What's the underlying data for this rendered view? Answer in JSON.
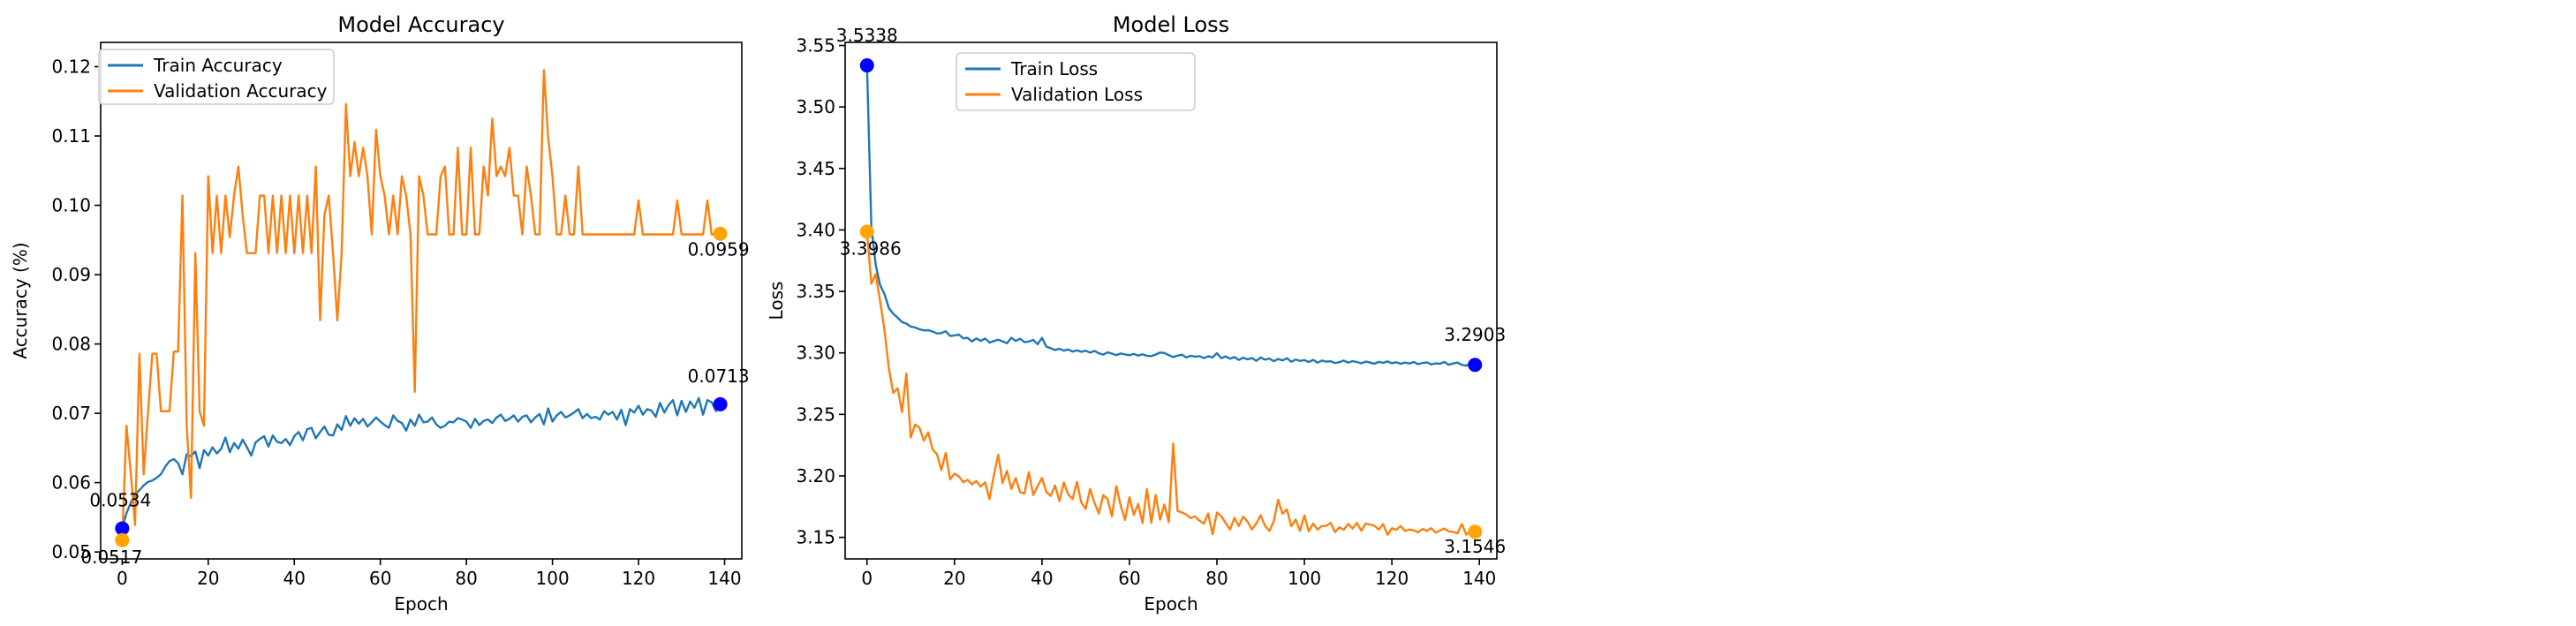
{
  "chart_data": [
    {
      "type": "line",
      "title": "Model Accuracy",
      "xlabel": "Epoch",
      "ylabel": "Accuracy (%)",
      "xlim": [
        -5,
        144
      ],
      "ylim": [
        0.049,
        0.1235
      ],
      "xticks": [
        0,
        20,
        40,
        60,
        80,
        100,
        120,
        140
      ],
      "yticks": [
        0.05,
        0.06,
        0.07,
        0.08,
        0.09,
        0.1,
        0.11,
        0.12
      ],
      "ytick_labels": [
        "0.05",
        "0.06",
        "0.07",
        "0.08",
        "0.09",
        "0.10",
        "0.11",
        "0.12"
      ],
      "grid": false,
      "legend_loc": "upper left",
      "series": [
        {
          "name": "Train Accuracy",
          "color": "#1f77b4",
          "values": [
            0.0534,
            0.0556,
            0.0571,
            0.0583,
            0.0589,
            0.0596,
            0.0601,
            0.0603,
            0.0607,
            0.0612,
            0.0623,
            0.0631,
            0.0634,
            0.0628,
            0.0612,
            0.0641,
            0.0638,
            0.0645,
            0.0621,
            0.0647,
            0.0639,
            0.0651,
            0.0642,
            0.0649,
            0.0665,
            0.0644,
            0.0657,
            0.0649,
            0.0662,
            0.0651,
            0.0639,
            0.0658,
            0.0663,
            0.0667,
            0.0652,
            0.0668,
            0.0659,
            0.0657,
            0.0663,
            0.0654,
            0.0667,
            0.0673,
            0.0661,
            0.0677,
            0.0679,
            0.0664,
            0.0673,
            0.0681,
            0.0669,
            0.0668,
            0.0684,
            0.0676,
            0.0696,
            0.0682,
            0.0693,
            0.0685,
            0.0692,
            0.0681,
            0.0687,
            0.0694,
            0.0688,
            0.0683,
            0.0679,
            0.0697,
            0.0689,
            0.0686,
            0.0675,
            0.0691,
            0.0682,
            0.0698,
            0.0687,
            0.0688,
            0.0694,
            0.0684,
            0.0679,
            0.0682,
            0.0688,
            0.0687,
            0.0693,
            0.0691,
            0.0688,
            0.0679,
            0.0692,
            0.0683,
            0.0689,
            0.0691,
            0.0686,
            0.0694,
            0.0698,
            0.0689,
            0.0692,
            0.0697,
            0.0688,
            0.0695,
            0.0697,
            0.0687,
            0.0694,
            0.0699,
            0.0684,
            0.0707,
            0.0688,
            0.0697,
            0.0702,
            0.0694,
            0.0697,
            0.0701,
            0.0706,
            0.0693,
            0.0699,
            0.0693,
            0.0695,
            0.0691,
            0.0703,
            0.0698,
            0.0702,
            0.0691,
            0.0705,
            0.0683,
            0.0706,
            0.0701,
            0.0711,
            0.0698,
            0.0706,
            0.0704,
            0.0695,
            0.0715,
            0.0701,
            0.0712,
            0.0719,
            0.0697,
            0.0718,
            0.0702,
            0.0717,
            0.0708,
            0.0722,
            0.0698,
            0.0719,
            0.0716,
            0.0703,
            0.0713
          ],
          "end_label": "0.0713",
          "start_label": "0.0534"
        },
        {
          "name": "Validation Accuracy",
          "color": "#ff7f0e",
          "values": [
            0.0517,
            0.0682,
            0.0613,
            0.0539,
            0.0786,
            0.0612,
            0.0701,
            0.0786,
            0.0786,
            0.0703,
            0.0703,
            0.0703,
            0.0789,
            0.0789,
            0.1014,
            0.0682,
            0.0578,
            0.0931,
            0.0703,
            0.0682,
            0.1042,
            0.0931,
            0.1014,
            0.0931,
            0.1014,
            0.0954,
            0.1014,
            0.1056,
            0.0986,
            0.0931,
            0.0931,
            0.0931,
            0.1014,
            0.1014,
            0.0931,
            0.1014,
            0.0931,
            0.1014,
            0.0931,
            0.1014,
            0.0931,
            0.1014,
            0.0931,
            0.1014,
            0.0931,
            0.1056,
            0.0834,
            0.0986,
            0.1014,
            0.0931,
            0.0834,
            0.0931,
            0.1146,
            0.1042,
            0.1091,
            0.1042,
            0.1083,
            0.1042,
            0.0958,
            0.1109,
            0.1042,
            0.1014,
            0.0958,
            0.1014,
            0.0958,
            0.1042,
            0.1014,
            0.0958,
            0.0731,
            0.1042,
            0.1014,
            0.0958,
            0.0958,
            0.0958,
            0.1042,
            0.1056,
            0.0958,
            0.0958,
            0.1083,
            0.0958,
            0.0958,
            0.1083,
            0.0958,
            0.0958,
            0.1056,
            0.1014,
            0.1125,
            0.1042,
            0.1056,
            0.1042,
            0.1083,
            0.1014,
            0.1014,
            0.0958,
            0.1056,
            0.1014,
            0.0958,
            0.0958,
            0.1195,
            0.1097,
            0.1042,
            0.0958,
            0.0958,
            0.1014,
            0.0958,
            0.0958,
            0.1056,
            0.0958,
            0.0958,
            0.0958,
            0.0958,
            0.0958,
            0.0958,
            0.0958,
            0.0958,
            0.0958,
            0.0958,
            0.0958,
            0.0958,
            0.0958,
            0.1007,
            0.0958,
            0.0958,
            0.0958,
            0.0958,
            0.0958,
            0.0958,
            0.0958,
            0.0958,
            0.1007,
            0.0958,
            0.0958,
            0.0958,
            0.0958,
            0.0958,
            0.0958,
            0.1007,
            0.0958,
            0.0958,
            0.0959
          ],
          "end_label": "0.0959",
          "start_label": "0.0517"
        }
      ]
    },
    {
      "type": "line",
      "title": "Model Loss",
      "xlabel": "Epoch",
      "ylabel": "Loss",
      "xlim": [
        -5,
        144
      ],
      "ylim": [
        3.1325,
        3.5525
      ],
      "xticks": [
        0,
        20,
        40,
        60,
        80,
        100,
        120,
        140
      ],
      "yticks": [
        3.15,
        3.2,
        3.25,
        3.3,
        3.35,
        3.4,
        3.45,
        3.5,
        3.55
      ],
      "ytick_labels": [
        "3.15",
        "3.20",
        "3.25",
        "3.30",
        "3.35",
        "3.40",
        "3.45",
        "3.50",
        "3.55"
      ],
      "grid": false,
      "legend_loc": "upper center",
      "series": [
        {
          "name": "Train  Loss",
          "color": "#1f77b4",
          "values": [
            3.5338,
            3.4024,
            3.3715,
            3.3552,
            3.3478,
            3.3365,
            3.3318,
            3.3287,
            3.3251,
            3.3238,
            3.3214,
            3.3207,
            3.3192,
            3.3183,
            3.3185,
            3.3174,
            3.3158,
            3.3161,
            3.3176,
            3.3138,
            3.3142,
            3.3149,
            3.3119,
            3.3122,
            3.3093,
            3.3118,
            3.3098,
            3.3117,
            3.3084,
            3.3096,
            3.3107,
            3.3094,
            3.3078,
            3.3123,
            3.3097,
            3.3115,
            3.3088,
            3.3092,
            3.3106,
            3.3071,
            3.3122,
            3.3051,
            3.3038,
            3.3024,
            3.3033,
            3.3019,
            3.3028,
            3.3011,
            3.3021,
            3.3009,
            3.3018,
            3.3002,
            3.3016,
            3.2997,
            3.2986,
            3.3005,
            3.2994,
            3.2982,
            3.2995,
            3.2988,
            3.2981,
            3.2992,
            3.2978,
            3.2989,
            3.2976,
            3.2974,
            3.2987,
            3.3003,
            3.2999,
            3.2982,
            3.2966,
            3.2978,
            3.2985,
            3.2963,
            3.2977,
            3.2969,
            3.2974,
            3.2958,
            3.2972,
            3.2964,
            3.2998,
            3.2957,
            3.2971,
            3.2953,
            3.2966,
            3.2943,
            3.2961,
            3.2948,
            3.2958,
            3.2936,
            3.2962,
            3.2945,
            3.2954,
            3.2933,
            3.2951,
            3.2939,
            3.2957,
            3.2928,
            3.2946,
            3.2935,
            3.2941,
            3.2926,
            3.2943,
            3.2921,
            3.2937,
            3.2929,
            3.2932,
            3.2918,
            3.2925,
            3.2938,
            3.2921,
            3.2933,
            3.2926,
            3.2915,
            3.2929,
            3.2922,
            3.2912,
            3.2927,
            3.2919,
            3.2931,
            3.2916,
            3.2924,
            3.2911,
            3.2921,
            3.2914,
            3.2926,
            3.2909,
            3.2918,
            3.2923,
            3.2907,
            3.2915,
            3.2912,
            3.2926,
            3.2904,
            3.2914,
            3.2921,
            3.2903,
            3.2896,
            3.2917,
            3.2903
          ],
          "end_label": "3.2903",
          "start_label": "3.5338"
        },
        {
          "name": "Validation  Loss",
          "color": "#ff7f0e",
          "values": [
            3.3986,
            3.3562,
            3.3641,
            3.3418,
            3.3187,
            3.2874,
            3.2675,
            3.2713,
            3.2519,
            3.2832,
            3.2312,
            3.2418,
            3.2391,
            3.2287,
            3.2354,
            3.2214,
            3.2176,
            3.2048,
            3.2187,
            3.1972,
            3.2018,
            3.1996,
            3.1949,
            3.1968,
            3.1931,
            3.1958,
            3.1914,
            3.1948,
            3.1812,
            3.2005,
            3.2172,
            3.1943,
            3.2041,
            3.1894,
            3.1983,
            3.1867,
            3.1857,
            3.2031,
            3.1844,
            3.1914,
            3.1983,
            3.1871,
            3.1837,
            3.1922,
            3.1796,
            3.1947,
            3.1849,
            3.1812,
            3.1951,
            3.1783,
            3.1732,
            3.1894,
            3.1782,
            3.1694,
            3.1843,
            3.1812,
            3.1672,
            3.1916,
            3.1758,
            3.1643,
            3.1826,
            3.1682,
            3.1773,
            3.1617,
            3.1892,
            3.1618,
            3.1845,
            3.1643,
            3.1768,
            3.1624,
            3.2263,
            3.1714,
            3.1703,
            3.1685,
            3.1657,
            3.1671,
            3.1636,
            3.1612,
            3.1694,
            3.1526,
            3.1702,
            3.1672,
            3.1617,
            3.1563,
            3.1659,
            3.1592,
            3.1668,
            3.1628,
            3.1564,
            3.1612,
            3.1679,
            3.1594,
            3.1552,
            3.1631,
            3.1806,
            3.1692,
            3.1728,
            3.1591,
            3.1645,
            3.1553,
            3.1678,
            3.1549,
            3.1612,
            3.1563,
            3.1592,
            3.1594,
            3.1618,
            3.1543,
            3.1582,
            3.1561,
            3.1609,
            3.1573,
            3.1618,
            3.1554,
            3.1612,
            3.1604,
            3.1595,
            3.1564,
            3.1608,
            3.1521,
            3.1574,
            3.1562,
            3.1592,
            3.1552,
            3.1564,
            3.1557,
            3.1541,
            3.1568,
            3.1553,
            3.1575,
            3.1538,
            3.1556,
            3.1572,
            3.1548,
            3.1545,
            3.1532,
            3.1609,
            3.1522,
            3.1554,
            3.1546
          ],
          "end_label": "3.1546",
          "start_label": "3.3986"
        }
      ]
    }
  ]
}
